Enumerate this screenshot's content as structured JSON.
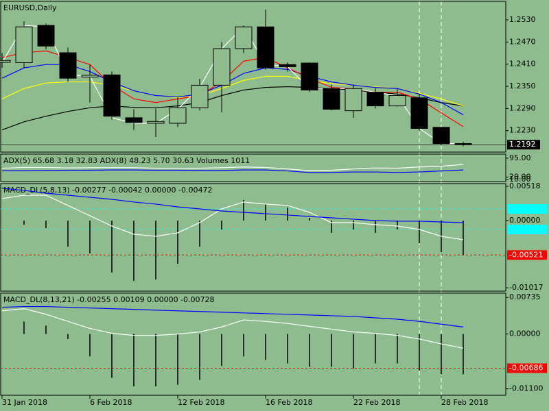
{
  "chart_data": [
    {
      "type": "candlestick",
      "title": "EURUSD,Daily",
      "categories": [
        "31 Jan 2018",
        null,
        null,
        null,
        "6 Feb 2018",
        null,
        null,
        null,
        "12 Feb 2018",
        null,
        null,
        null,
        "16 Feb 2018",
        null,
        null,
        null,
        "22 Feb 2018",
        null,
        null,
        null,
        "28 Feb 2018",
        null
      ],
      "open": [
        1.2415,
        1.2414,
        1.2515,
        1.2441,
        1.2375,
        1.2381,
        1.2265,
        1.225,
        1.225,
        1.2292,
        1.2353,
        1.2452,
        1.2511,
        1.2409,
        1.2413,
        1.2344,
        1.2284,
        1.2334,
        1.2297,
        1.2319,
        1.2239,
        1.2195
      ],
      "high": [
        1.244,
        1.2526,
        1.252,
        1.2455,
        1.2409,
        1.239,
        1.2288,
        1.229,
        1.232,
        1.237,
        1.247,
        1.2515,
        1.2558,
        1.2415,
        1.2415,
        1.2355,
        1.2355,
        1.2345,
        1.2345,
        1.233,
        1.224,
        1.22
      ],
      "low": [
        1.24,
        1.24,
        1.245,
        1.2362,
        1.2306,
        1.226,
        1.2232,
        1.2213,
        1.224,
        1.2285,
        1.228,
        1.244,
        1.2395,
        1.239,
        1.2335,
        1.2285,
        1.2265,
        1.229,
        1.2295,
        1.223,
        1.219,
        1.2188
      ],
      "close": [
        1.242,
        1.2511,
        1.2459,
        1.2372,
        1.238,
        1.2269,
        1.2252,
        1.2255,
        1.2292,
        1.2353,
        1.2452,
        1.2511,
        1.24,
        1.2403,
        1.234,
        1.2288,
        1.2344,
        1.2297,
        1.2325,
        1.2236,
        1.2195,
        1.2192
      ],
      "candle_colors": {
        "up": "#8fbc8f",
        "down": "#000000",
        "outline": "#000000"
      },
      "series": [
        {
          "color": "#000000",
          "values": [
            1.2232,
            1.2254,
            1.2269,
            1.2282,
            1.2292,
            1.2297,
            1.2293,
            1.2292,
            1.2297,
            1.2306,
            1.2325,
            1.234,
            1.2347,
            1.2349,
            1.2347,
            1.2344,
            1.234,
            1.2334,
            1.2329,
            1.2319,
            1.2306,
            1.2297
          ]
        },
        {
          "color": "#ffff00",
          "values": [
            1.2316,
            1.2344,
            1.2359,
            1.2362,
            1.2362,
            1.2353,
            1.2338,
            1.2325,
            1.2319,
            1.2325,
            1.2344,
            1.2366,
            1.2377,
            1.2377,
            1.2366,
            1.2357,
            1.2353,
            1.2349,
            1.2344,
            1.2331,
            1.2316,
            1.2297
          ]
        },
        {
          "color": "#0000ff",
          "values": [
            1.2372,
            1.24,
            1.2409,
            1.2409,
            1.239,
            1.2362,
            1.2338,
            1.2325,
            1.2321,
            1.2329,
            1.2353,
            1.2385,
            1.24,
            1.2396,
            1.2377,
            1.2362,
            1.2353,
            1.2347,
            1.2344,
            1.2329,
            1.2306,
            1.2273
          ]
        },
        {
          "color": "#ff0000",
          "values": [
            1.2428,
            1.2441,
            1.2446,
            1.2428,
            1.2409,
            1.2353,
            1.2316,
            1.2306,
            1.2316,
            1.2325,
            1.2362,
            1.2418,
            1.2428,
            1.24,
            1.2372,
            1.2347,
            1.2344,
            1.2334,
            1.2334,
            1.2316,
            1.2278,
            1.2241
          ]
        },
        {
          "color": "#ffffff",
          "values": [
            1.2414,
            1.2515,
            1.2511,
            1.2381,
            1.2377,
            1.2265,
            1.225,
            1.225,
            1.2288,
            1.2347,
            1.2452,
            1.2511,
            1.2409,
            1.2403,
            1.2344,
            1.2344,
            1.2344,
            1.2334,
            1.2325,
            1.2236,
            1.2195,
            1.2195
          ]
        }
      ],
      "ylim": [
        1.2172,
        1.258
      ],
      "yticks": [
        {
          "value": 1.253,
          "label": "1.2530"
        },
        {
          "value": 1.247,
          "label": "1.2470"
        },
        {
          "value": 1.241,
          "label": "1.2410"
        },
        {
          "value": 1.235,
          "label": "1.2350"
        },
        {
          "value": 1.229,
          "label": "1.2290"
        },
        {
          "value": 1.223,
          "label": "1.2230"
        }
      ],
      "last_price": 1.2192
    },
    {
      "type": "line",
      "title": "ADX(5) 65.68 3.18 32.83 ADX(8) 48.23 5.70 30.63 Volumes 1011",
      "series": [
        {
          "color": "#ffffff",
          "values": [
            55,
            58,
            58,
            56,
            57,
            57,
            57,
            55,
            55,
            55,
            57,
            60,
            58,
            52,
            45,
            47,
            52,
            56,
            55,
            60,
            63,
            70
          ]
        },
        {
          "color": "#0000ff",
          "values": [
            45,
            45,
            46,
            47,
            47,
            48,
            48,
            47,
            47,
            46,
            46,
            48,
            48,
            44,
            38,
            38,
            40,
            40,
            38,
            40,
            44,
            48
          ]
        }
      ],
      "ylim": [
        2,
        111
      ],
      "yticks": [
        {
          "value": 95,
          "label": "95.00"
        },
        {
          "value": 20,
          "label": "20.00"
        },
        {
          "value": 10,
          "label": "10.00"
        }
      ]
    },
    {
      "type": "macd",
      "title": "MACD_DL(5,8,13) -0.00277 -0.00042 0.00000 -0.00472",
      "histogram": {
        "color": "#000000",
        "values": [
          null,
          -0.00062,
          -0.00114,
          -0.00394,
          -0.00497,
          -0.00787,
          -0.00912,
          -0.00891,
          -0.00653,
          -0.00394,
          -0.00135,
          0.00311,
          0.00249,
          0.00197,
          0.00041,
          -0.00186,
          -0.00135,
          -0.00186,
          -0.00135,
          -0.00342,
          -0.00477,
          -0.00518
        ]
      },
      "series": [
        {
          "color": "#ffffff",
          "values": [
            0.00332,
            0.00383,
            0.00383,
            0.00228,
            0.00073,
            -0.00083,
            -0.00207,
            -0.00238,
            -0.00186,
            -0.00031,
            0.00176,
            0.0028,
            0.00249,
            0.00228,
            0.00124,
            -0.00031,
            -0.00031,
            -0.00062,
            -0.00083,
            -0.00135,
            -0.00238,
            -0.0029
          ]
        },
        {
          "color": "#0000ff",
          "values": [
            0.00487,
            0.00456,
            0.00414,
            0.00383,
            0.00352,
            0.00321,
            0.0028,
            0.00249,
            0.00207,
            0.00176,
            0.00145,
            0.00124,
            0.00104,
            0.00083,
            0.00062,
            0.00041,
            0.00021,
            0,
            -0.0001,
            -0.0001,
            -0.00021,
            -0.00031
          ]
        }
      ],
      "bands": [
        {
          "value": 0.00176,
          "color": "#00ffff"
        },
        {
          "value": -0.00135,
          "color": "#00ffff"
        }
      ],
      "levels": [
        {
          "value": -0.00521,
          "color": "#ff0000"
        }
      ],
      "ylim": [
        -0.01067,
        0.00559
      ],
      "yticks": [
        0.00518,
        {
          "value": 0,
          "label": "0.00000"
        },
        -0.01017
      ]
    },
    {
      "type": "macd",
      "title": "MACD_DL(8,13,21) -0.00255 0.00109 0.00000 -0.00728",
      "histogram": {
        "color": "#000000",
        "values": [
          null,
          0.0025,
          0.0017,
          -0.001,
          -0.0045,
          -0.0088,
          -0.0105,
          -0.0105,
          -0.0102,
          -0.0092,
          -0.0064,
          -0.0045,
          -0.0052,
          -0.0059,
          -0.0066,
          -0.0066,
          -0.0069,
          -0.0059,
          -0.0059,
          -0.0073,
          -0.0081,
          -0.0081
        ]
      },
      "series": [
        {
          "color": "#ffffff",
          "values": [
            0.00466,
            0.00509,
            0.00396,
            0.00254,
            0.00113,
            0.00014,
            -0.00028,
            -0.00028,
            0,
            0.00042,
            0.00141,
            0.00283,
            0.00254,
            0.00212,
            0.00155,
            0.00099,
            0.00042,
            0.00014,
            -0.00028,
            -0.00099,
            -0.00198,
            -0.00283
          ]
        },
        {
          "color": "#0000ff",
          "values": [
            0.00537,
            0.00551,
            0.00551,
            0.00537,
            0.00523,
            0.00509,
            0.00495,
            0.0048,
            0.00466,
            0.00452,
            0.00438,
            0.00424,
            0.0041,
            0.00396,
            0.00382,
            0.00367,
            0.00353,
            0.00325,
            0.00297,
            0.00254,
            0.00198,
            0.00141
          ]
        }
      ],
      "levels": [
        {
          "value": -0.00686,
          "color": "#ff0000"
        }
      ],
      "ylim": [
        -0.01229,
        0.0082
      ],
      "yticks": [
        0.00735,
        {
          "value": 0,
          "label": "0.00000"
        },
        {
          "value": -0.011,
          "label": "-0.01100"
        }
      ]
    }
  ]
}
